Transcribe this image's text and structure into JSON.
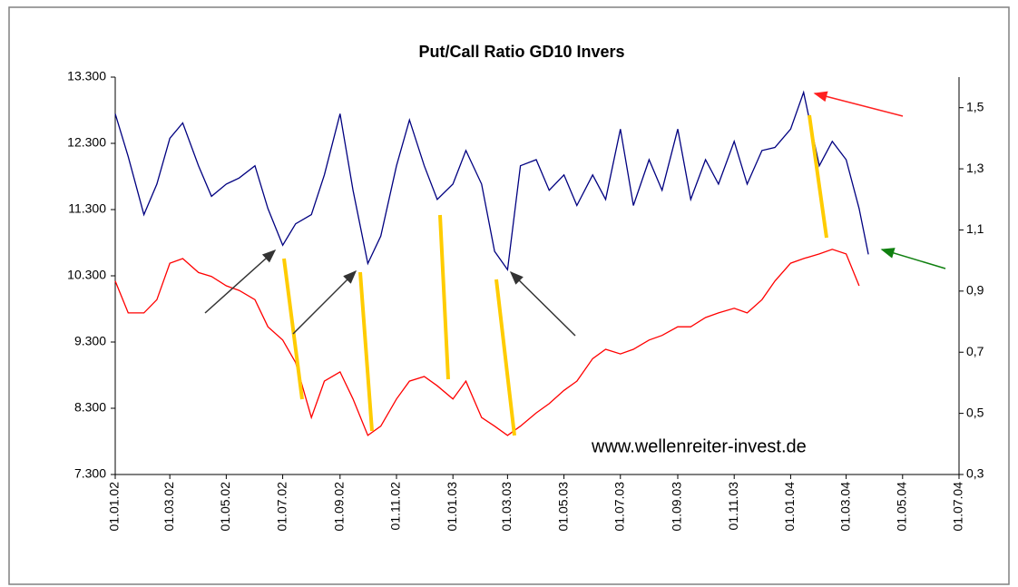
{
  "chart_data": {
    "type": "line",
    "title": "Put/Call Ratio GD10 Invers",
    "annotation": "www.wellenreiter-invest.de",
    "x": [
      "01.01.02",
      "15.01.02",
      "01.02.02",
      "15.02.02",
      "01.03.02",
      "15.03.02",
      "01.04.02",
      "15.04.02",
      "01.05.02",
      "15.05.02",
      "01.06.02",
      "15.06.02",
      "01.07.02",
      "15.07.02",
      "01.08.02",
      "15.08.02",
      "01.09.02",
      "15.09.02",
      "01.10.02",
      "15.10.02",
      "01.11.02",
      "15.11.02",
      "01.12.02",
      "15.12.02",
      "01.01.03",
      "15.01.03",
      "01.02.03",
      "15.02.03",
      "01.03.03",
      "15.03.03",
      "01.04.03",
      "15.04.03",
      "01.05.03",
      "15.05.03",
      "01.06.03",
      "15.06.03",
      "01.07.03",
      "15.07.03",
      "01.08.03",
      "15.08.03",
      "01.09.03",
      "15.09.03",
      "01.10.03",
      "15.10.03",
      "01.11.03",
      "15.11.03",
      "01.12.03",
      "15.12.03",
      "01.01.04",
      "15.01.04",
      "01.02.04",
      "15.02.04",
      "01.03.04",
      "15.03.04",
      "25.03.04"
    ],
    "xlim": [
      "01.01.02",
      "01.07.04"
    ],
    "xticks": [
      "01.01.02",
      "01.03.02",
      "01.05.02",
      "01.07.02",
      "01.09.02",
      "01.11.02",
      "01.01.03",
      "01.03.03",
      "01.05.03",
      "01.07.03",
      "01.09.03",
      "01.11.03",
      "01.01.04",
      "01.03.04",
      "01.05.04",
      "01.07.04"
    ],
    "ylim": [
      7300,
      13300
    ],
    "yticks": [
      {
        "value": 7300,
        "label": "7.300"
      },
      {
        "value": 8300,
        "label": "8.300"
      },
      {
        "value": 9300,
        "label": "9.300"
      },
      {
        "value": 10300,
        "label": "10.300"
      },
      {
        "value": 11300,
        "label": "11.300"
      },
      {
        "value": 12300,
        "label": "12.300"
      },
      {
        "value": 13300,
        "label": "13.300"
      }
    ],
    "y2lim": [
      0.3,
      1.6
    ],
    "y2ticks": [
      {
        "value": 0.3,
        "label": "0,3"
      },
      {
        "value": 0.5,
        "label": "0,5"
      },
      {
        "value": 0.7,
        "label": "0,7"
      },
      {
        "value": 0.9,
        "label": "0,9"
      },
      {
        "value": 1.1,
        "label": "1,1"
      },
      {
        "value": 1.3,
        "label": "1,3"
      },
      {
        "value": 1.5,
        "label": "1,5"
      }
    ],
    "series": [
      {
        "color": "#ff0000",
        "values": [
          10220,
          9740,
          9740,
          9940,
          10490,
          10560,
          10350,
          10290,
          10150,
          10080,
          9940,
          9530,
          9330,
          8990,
          8160,
          8710,
          8850,
          8440,
          7890,
          8030,
          8440,
          8710,
          8780,
          8640,
          8440,
          8710,
          8160,
          8030,
          7890,
          8030,
          8230,
          8370,
          8570,
          8710,
          9050,
          9190,
          9120,
          9190,
          9330,
          9400,
          9530,
          9530,
          9670,
          9740,
          9810,
          9740,
          9940,
          10220,
          10490,
          10560,
          10630,
          10700,
          10630,
          10150,
          null
        ]
      },
      {
        "color": "#000080",
        "axis": "y2",
        "values": [
          1.48,
          1.34,
          1.15,
          1.25,
          1.4,
          1.45,
          1.31,
          1.21,
          1.25,
          1.27,
          1.31,
          1.17,
          1.05,
          1.12,
          1.15,
          1.28,
          1.48,
          1.23,
          0.99,
          1.08,
          1.31,
          1.46,
          1.31,
          1.2,
          1.25,
          1.36,
          1.25,
          1.03,
          0.97,
          1.31,
          1.33,
          1.23,
          1.28,
          1.18,
          1.28,
          1.2,
          1.43,
          1.18,
          1.33,
          1.23,
          1.43,
          1.2,
          1.33,
          1.25,
          1.39,
          1.25,
          1.36,
          1.37,
          1.43,
          1.55,
          1.31,
          1.39,
          1.33,
          1.17,
          1.02
        ]
      }
    ]
  }
}
